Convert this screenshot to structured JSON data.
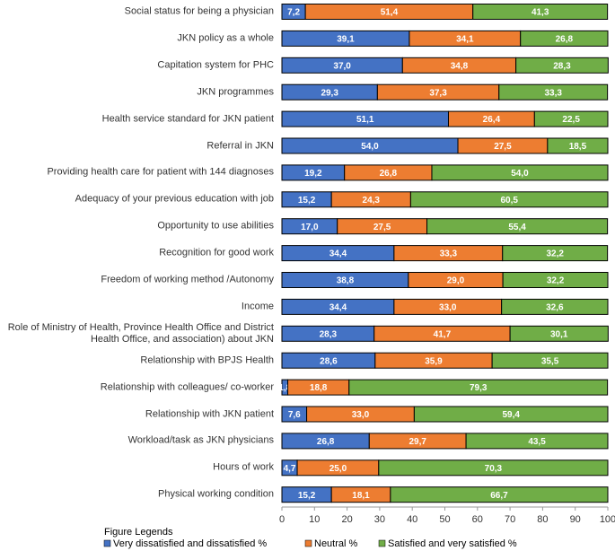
{
  "chart_data": {
    "type": "stacked-barh",
    "categories": [
      "Social status for being a physician",
      "JKN policy as a whole",
      "Capitation system for PHC",
      "JKN programmes",
      "Health service standard for JKN patient",
      "Referral in JKN",
      "Providing health care for patient with 144 diagnoses",
      "Adequacy of your previous education with job",
      "Opportunity to use abilities",
      "Recognition for good work",
      "Freedom of working method /Autonomy",
      "Income",
      "Role of Ministry of Health, Province Health Office and District Health Office, and association) about JKN",
      "Relationship with BPJS Health",
      "Relationship with colleagues/ co-worker",
      "Relationship with JKN patient",
      "Workload/task as JKN physicians",
      "Hours of work",
      "Physical working condition"
    ],
    "series": [
      {
        "name": "Very dissatisfied and dissatisfied %",
        "color": "#4472c4",
        "values": [
          7.2,
          39.1,
          37.0,
          29.3,
          51.1,
          54.0,
          19.2,
          15.2,
          17.0,
          34.4,
          38.8,
          34.4,
          28.3,
          28.6,
          1.8,
          7.6,
          26.8,
          4.7,
          15.2
        ],
        "value_labels": [
          "7,2",
          "39,1",
          "37,0",
          "29,3",
          "51,1",
          "54,0",
          "19,2",
          "15,2",
          "17,0",
          "34,4",
          "38,8",
          "34,4",
          "28,3",
          "28,6",
          "1,8",
          "7,6",
          "26,8",
          "4,7",
          "15,2"
        ]
      },
      {
        "name": "Neutral %",
        "color": "#ed7d31",
        "values": [
          51.4,
          34.1,
          34.8,
          37.3,
          26.4,
          27.5,
          26.8,
          24.3,
          27.5,
          33.3,
          29.0,
          33.0,
          41.7,
          35.9,
          18.8,
          33.0,
          29.7,
          25.0,
          18.1
        ],
        "value_labels": [
          "51,4",
          "34,1",
          "34,8",
          "37,3",
          "26,4",
          "27,5",
          "26,8",
          "24,3",
          "27,5",
          "33,3",
          "29,0",
          "33,0",
          "41,7",
          "35,9",
          "18,8",
          "33,0",
          "29,7",
          "25,0",
          "18,1"
        ]
      },
      {
        "name": "Satisfied and very satisfied %",
        "color": "#70ad47",
        "values": [
          41.3,
          26.8,
          28.3,
          33.3,
          22.5,
          18.5,
          54.0,
          60.5,
          55.4,
          32.2,
          32.2,
          32.6,
          30.1,
          35.5,
          79.3,
          59.4,
          43.5,
          70.3,
          66.7
        ],
        "value_labels": [
          "41,3",
          "26,8",
          "28,3",
          "33,3",
          "22,5",
          "18,5",
          "54,0",
          "60,5",
          "55,4",
          "32,2",
          "32,2",
          "32,6",
          "30,1",
          "35,5",
          "79,3",
          "59,4",
          "43,5",
          "70,3",
          "66,7"
        ]
      }
    ],
    "xlim": [
      0,
      100
    ],
    "xticks": [
      0,
      10,
      20,
      30,
      40,
      50,
      60,
      70,
      80,
      90,
      100
    ],
    "legend_title": "Figure Legends",
    "legend": "bottom-left"
  }
}
